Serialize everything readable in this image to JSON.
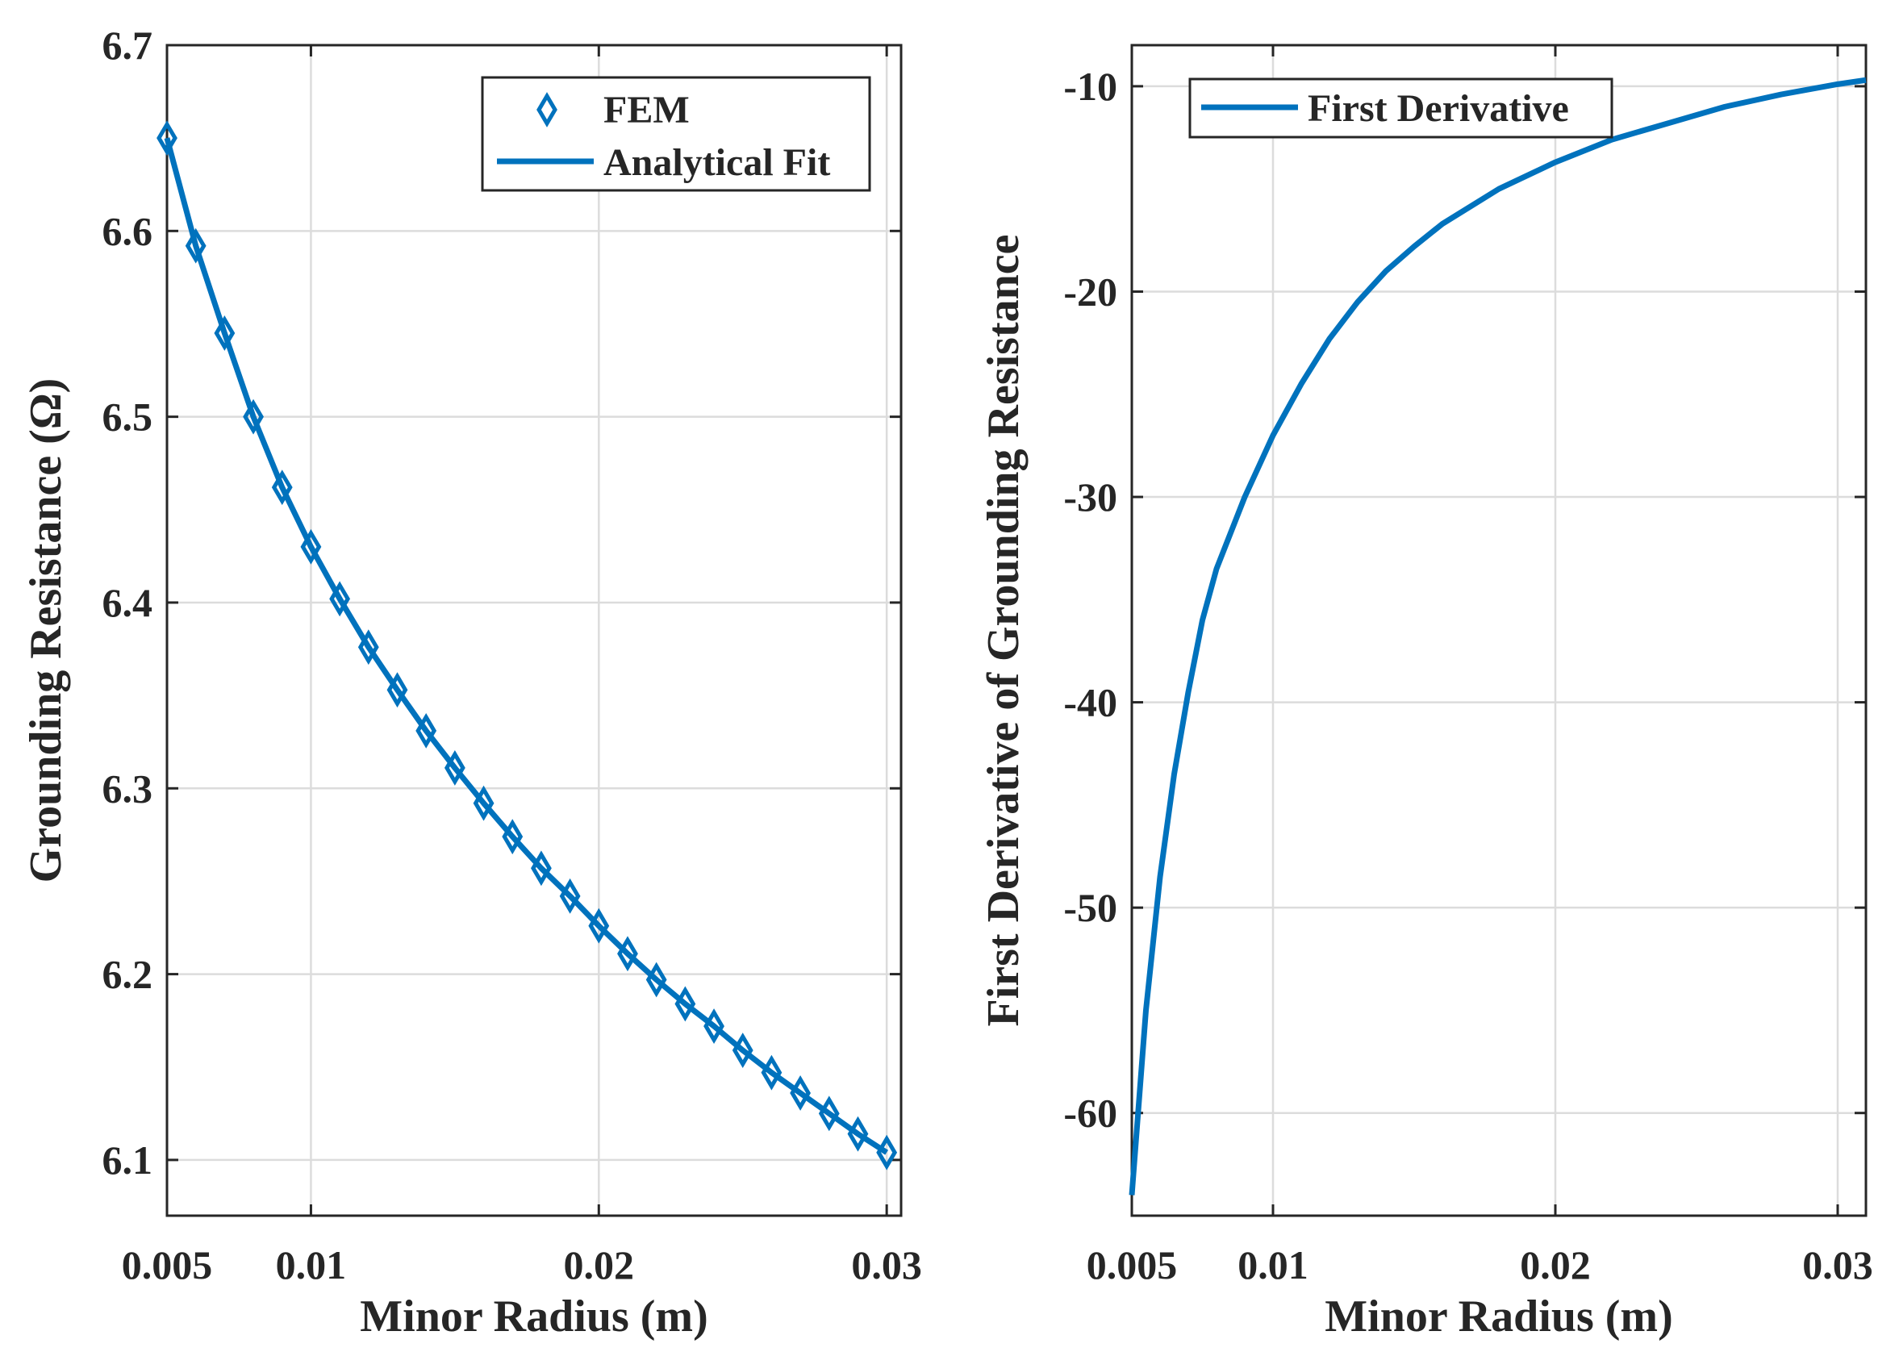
{
  "colors": {
    "series": "#0072BD",
    "axis": "#262626",
    "grid": "#dcdcdc"
  },
  "chart_data": [
    {
      "type": "line",
      "title": "",
      "xlabel": "Minor Radius (m)",
      "ylabel": "Grounding Resistance (Ω)",
      "xlim": [
        0.005,
        0.0305
      ],
      "ylim": [
        6.07,
        6.7
      ],
      "xticks": [
        0.005,
        0.01,
        0.02,
        0.03
      ],
      "xtick_labels": [
        "0.005",
        "0.01",
        "0.02",
        "0.03"
      ],
      "yticks": [
        6.1,
        6.2,
        6.3,
        6.4,
        6.5,
        6.6,
        6.7
      ],
      "ytick_labels": [
        "6.1",
        "6.2",
        "6.3",
        "6.4",
        "6.5",
        "6.6",
        "6.7"
      ],
      "grid": true,
      "legend": {
        "position": "top-right",
        "entries": [
          "FEM",
          "Analytical Fit"
        ]
      },
      "series": [
        {
          "name": "FEM",
          "marker": "diamond",
          "x": [
            0.005,
            0.006,
            0.007,
            0.008,
            0.009,
            0.01,
            0.011,
            0.012,
            0.013,
            0.014,
            0.015,
            0.016,
            0.017,
            0.018,
            0.019,
            0.02,
            0.021,
            0.022,
            0.023,
            0.024,
            0.025,
            0.026,
            0.027,
            0.028,
            0.029,
            0.03
          ],
          "values": [
            6.65,
            6.592,
            6.545,
            6.5,
            6.462,
            6.43,
            6.402,
            6.376,
            6.353,
            6.331,
            6.311,
            6.292,
            6.274,
            6.257,
            6.242,
            6.226,
            6.211,
            6.197,
            6.184,
            6.172,
            6.159,
            6.147,
            6.136,
            6.125,
            6.114,
            6.104
          ]
        },
        {
          "name": "Analytical Fit",
          "marker": "none",
          "x": [
            0.005,
            0.006,
            0.007,
            0.008,
            0.009,
            0.01,
            0.011,
            0.012,
            0.013,
            0.014,
            0.015,
            0.016,
            0.017,
            0.018,
            0.019,
            0.02,
            0.021,
            0.022,
            0.023,
            0.024,
            0.025,
            0.026,
            0.027,
            0.028,
            0.029,
            0.03
          ],
          "values": [
            6.65,
            6.592,
            6.545,
            6.5,
            6.462,
            6.43,
            6.402,
            6.376,
            6.353,
            6.331,
            6.311,
            6.292,
            6.274,
            6.257,
            6.242,
            6.226,
            6.211,
            6.197,
            6.184,
            6.172,
            6.159,
            6.147,
            6.136,
            6.125,
            6.114,
            6.104
          ]
        }
      ]
    },
    {
      "type": "line",
      "title": "",
      "xlabel": "Minor Radius (m)",
      "ylabel": "First Derivative of Grounding Resistance",
      "xlim": [
        0.005,
        0.031
      ],
      "ylim": [
        -65,
        -8
      ],
      "xticks": [
        0.005,
        0.01,
        0.02,
        0.03
      ],
      "xtick_labels": [
        "0.005",
        "0.01",
        "0.02",
        "0.03"
      ],
      "yticks": [
        -60,
        -50,
        -40,
        -30,
        -20,
        -10
      ],
      "ytick_labels": [
        "-60",
        "-50",
        "-40",
        "-30",
        "-20",
        "-10"
      ],
      "grid": true,
      "legend": {
        "position": "top-left",
        "entries": [
          "First Derivative"
        ]
      },
      "series": [
        {
          "name": "First Derivative",
          "marker": "none",
          "x": [
            0.005,
            0.0055,
            0.006,
            0.0065,
            0.007,
            0.0075,
            0.008,
            0.009,
            0.01,
            0.011,
            0.012,
            0.013,
            0.014,
            0.015,
            0.016,
            0.018,
            0.02,
            0.022,
            0.024,
            0.026,
            0.028,
            0.03,
            0.031
          ],
          "values": [
            -64,
            -55,
            -48.5,
            -43.5,
            -39.5,
            -36,
            -33.5,
            -30,
            -27,
            -24.5,
            -22.3,
            -20.5,
            -19,
            -17.8,
            -16.7,
            -15,
            -13.7,
            -12.6,
            -11.8,
            -11.0,
            -10.4,
            -9.9,
            -9.7
          ]
        }
      ]
    }
  ]
}
